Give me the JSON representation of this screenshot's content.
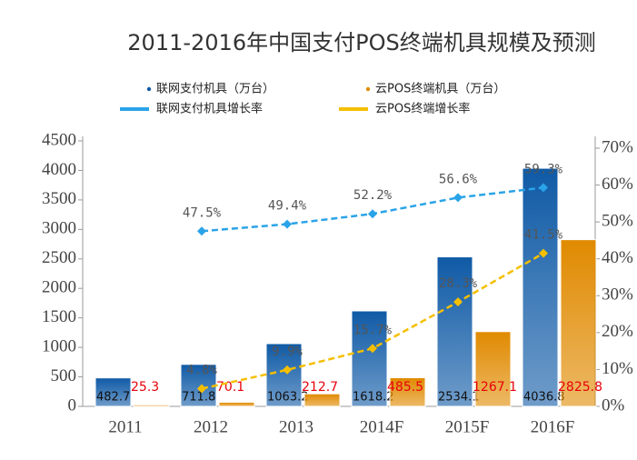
{
  "chart_data": {
    "type": "bar_line",
    "title": "2011-2016年中国支付POS终端机具规模及预测",
    "categories": [
      "2011",
      "2012",
      "2013",
      "2014F",
      "2015F",
      "2016F"
    ],
    "series": [
      {
        "name": "联网支付机具（万台）",
        "type": "bar",
        "color": "#0f5aa6",
        "values": [
          482.7,
          711.8,
          1063.2,
          1618.2,
          2534.1,
          4036.8
        ]
      },
      {
        "name": "云POS终端机具（万台）",
        "type": "bar",
        "color": "#e08a00",
        "values": [
          25.3,
          70.1,
          212.7,
          485.5,
          1267.1,
          2825.8
        ]
      },
      {
        "name": "联网支付机具增长率",
        "type": "line",
        "axis": "y2",
        "color": "#2aa3e8",
        "values": [
          null,
          47.5,
          49.4,
          52.2,
          56.6,
          59.3
        ],
        "value_labels": [
          null,
          "47.5%",
          "49.4%",
          "52.2%",
          "56.6%",
          "59.3%"
        ]
      },
      {
        "name": "云POS终端增长率",
        "type": "line",
        "axis": "y2",
        "color": "#f5bf00",
        "values": [
          null,
          4.8,
          9.9,
          15.7,
          28.3,
          41.5
        ],
        "value_labels": [
          null,
          "4.8%",
          "9.9%",
          "15.7%",
          "28.3%",
          "41.5%"
        ]
      }
    ],
    "ylim": [
      0,
      4500
    ],
    "yticks": [
      0,
      500,
      1000,
      1500,
      2000,
      2500,
      3000,
      3500,
      4000,
      4500
    ],
    "y2lim": [
      0,
      70
    ],
    "y2ticks": [
      {
        "value": 0,
        "label": "0%"
      },
      {
        "value": 10,
        "label": "10%"
      },
      {
        "value": 20,
        "label": "20%"
      },
      {
        "value": 30,
        "label": "30%"
      },
      {
        "value": 40,
        "label": "40%"
      },
      {
        "value": 50,
        "label": "50%"
      },
      {
        "value": 60,
        "label": "60%"
      },
      {
        "value": 70,
        "label": "70%"
      }
    ]
  }
}
